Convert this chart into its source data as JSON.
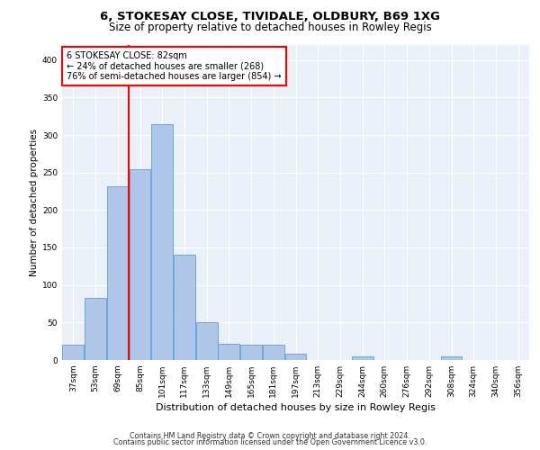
{
  "title1": "6, STOKESAY CLOSE, TIVIDALE, OLDBURY, B69 1XG",
  "title2": "Size of property relative to detached houses in Rowley Regis",
  "xlabel": "Distribution of detached houses by size in Rowley Regis",
  "ylabel": "Number of detached properties",
  "bin_labels": [
    "37sqm",
    "53sqm",
    "69sqm",
    "85sqm",
    "101sqm",
    "117sqm",
    "133sqm",
    "149sqm",
    "165sqm",
    "181sqm",
    "197sqm",
    "213sqm",
    "229sqm",
    "244sqm",
    "260sqm",
    "276sqm",
    "292sqm",
    "308sqm",
    "324sqm",
    "340sqm",
    "356sqm"
  ],
  "bar_values": [
    20,
    83,
    232,
    254,
    315,
    141,
    50,
    22,
    20,
    20,
    8,
    0,
    0,
    5,
    0,
    0,
    0,
    5,
    0,
    0,
    0
  ],
  "bar_color": "#aec6e8",
  "bar_edge_color": "#5a9fd4",
  "vline_position": 2.5,
  "vline_color": "red",
  "annotation_text": "6 STOKESAY CLOSE: 82sqm\n← 24% of detached houses are smaller (268)\n76% of semi-detached houses are larger (854) →",
  "annotation_box_color": "white",
  "annotation_box_edge": "red",
  "ylim": [
    0,
    420
  ],
  "yticks": [
    0,
    50,
    100,
    150,
    200,
    250,
    300,
    350,
    400
  ],
  "footnote1": "Contains HM Land Registry data © Crown copyright and database right 2024.",
  "footnote2": "Contains public sector information licensed under the Open Government Licence v3.0.",
  "bg_color": "#eaf0f8",
  "fig_bg": "#ffffff",
  "title1_fontsize": 9.5,
  "title2_fontsize": 8.5,
  "ylabel_fontsize": 7.5,
  "xlabel_fontsize": 8,
  "tick_fontsize": 6.5,
  "annot_fontsize": 7,
  "footnote_fontsize": 5.8
}
